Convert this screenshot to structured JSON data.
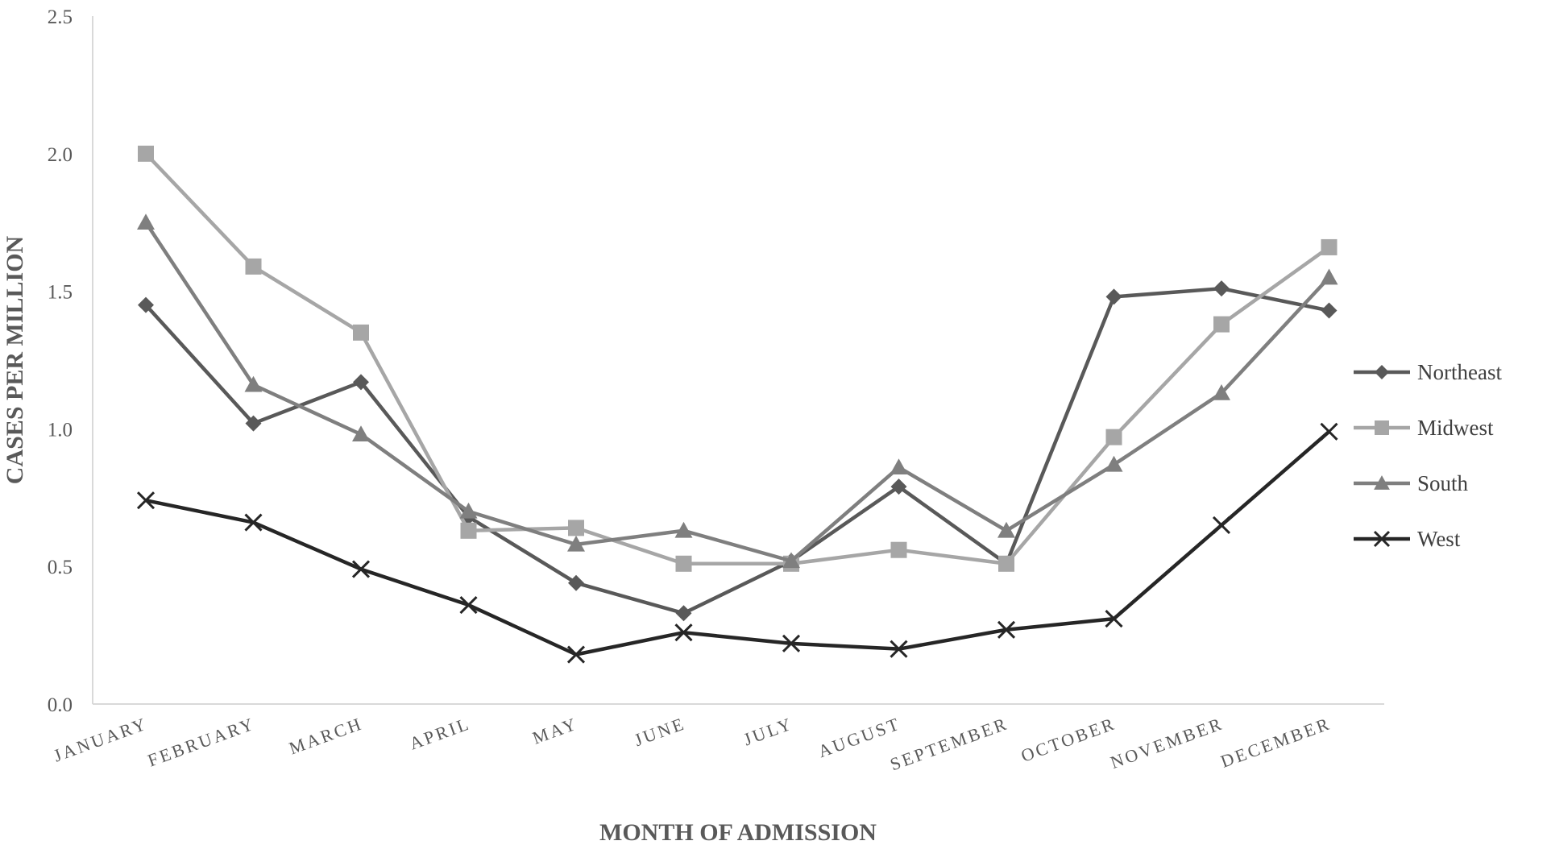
{
  "chart_data": {
    "type": "line",
    "title": "",
    "xlabel": "MONTH OF ADMISSION",
    "ylabel": "CASES PER MILLION",
    "categories": [
      "JANUARY",
      "FEBRUARY",
      "MARCH",
      "APRIL",
      "MAY",
      "JUNE",
      "JULY",
      "AUGUST",
      "SEPTEMBER",
      "OCTOBER",
      "NOVEMBER",
      "DECEMBER"
    ],
    "ylim": [
      0,
      2.5
    ],
    "yticks": [
      "0.0",
      "0.5",
      "1.0",
      "1.5",
      "2.0",
      "2.5"
    ],
    "grid": false,
    "legend_position": "right",
    "series": [
      {
        "name": "Northeast",
        "marker": "diamond",
        "color": "#595959",
        "values": [
          1.45,
          1.02,
          1.17,
          0.68,
          0.44,
          0.33,
          0.52,
          0.79,
          0.51,
          1.48,
          1.51,
          1.43
        ]
      },
      {
        "name": "Midwest",
        "marker": "square",
        "color": "#a6a6a6",
        "values": [
          2.0,
          1.59,
          1.35,
          0.63,
          0.64,
          0.51,
          0.51,
          0.56,
          0.51,
          0.97,
          1.38,
          1.66
        ]
      },
      {
        "name": "South",
        "marker": "triangle",
        "color": "#7f7f7f",
        "values": [
          1.75,
          1.16,
          0.98,
          0.7,
          0.58,
          0.63,
          0.52,
          0.86,
          0.63,
          0.87,
          1.13,
          1.55
        ]
      },
      {
        "name": "West",
        "marker": "x",
        "color": "#262626",
        "values": [
          0.74,
          0.66,
          0.49,
          0.36,
          0.18,
          0.26,
          0.22,
          0.2,
          0.27,
          0.31,
          0.65,
          0.99
        ]
      }
    ]
  }
}
